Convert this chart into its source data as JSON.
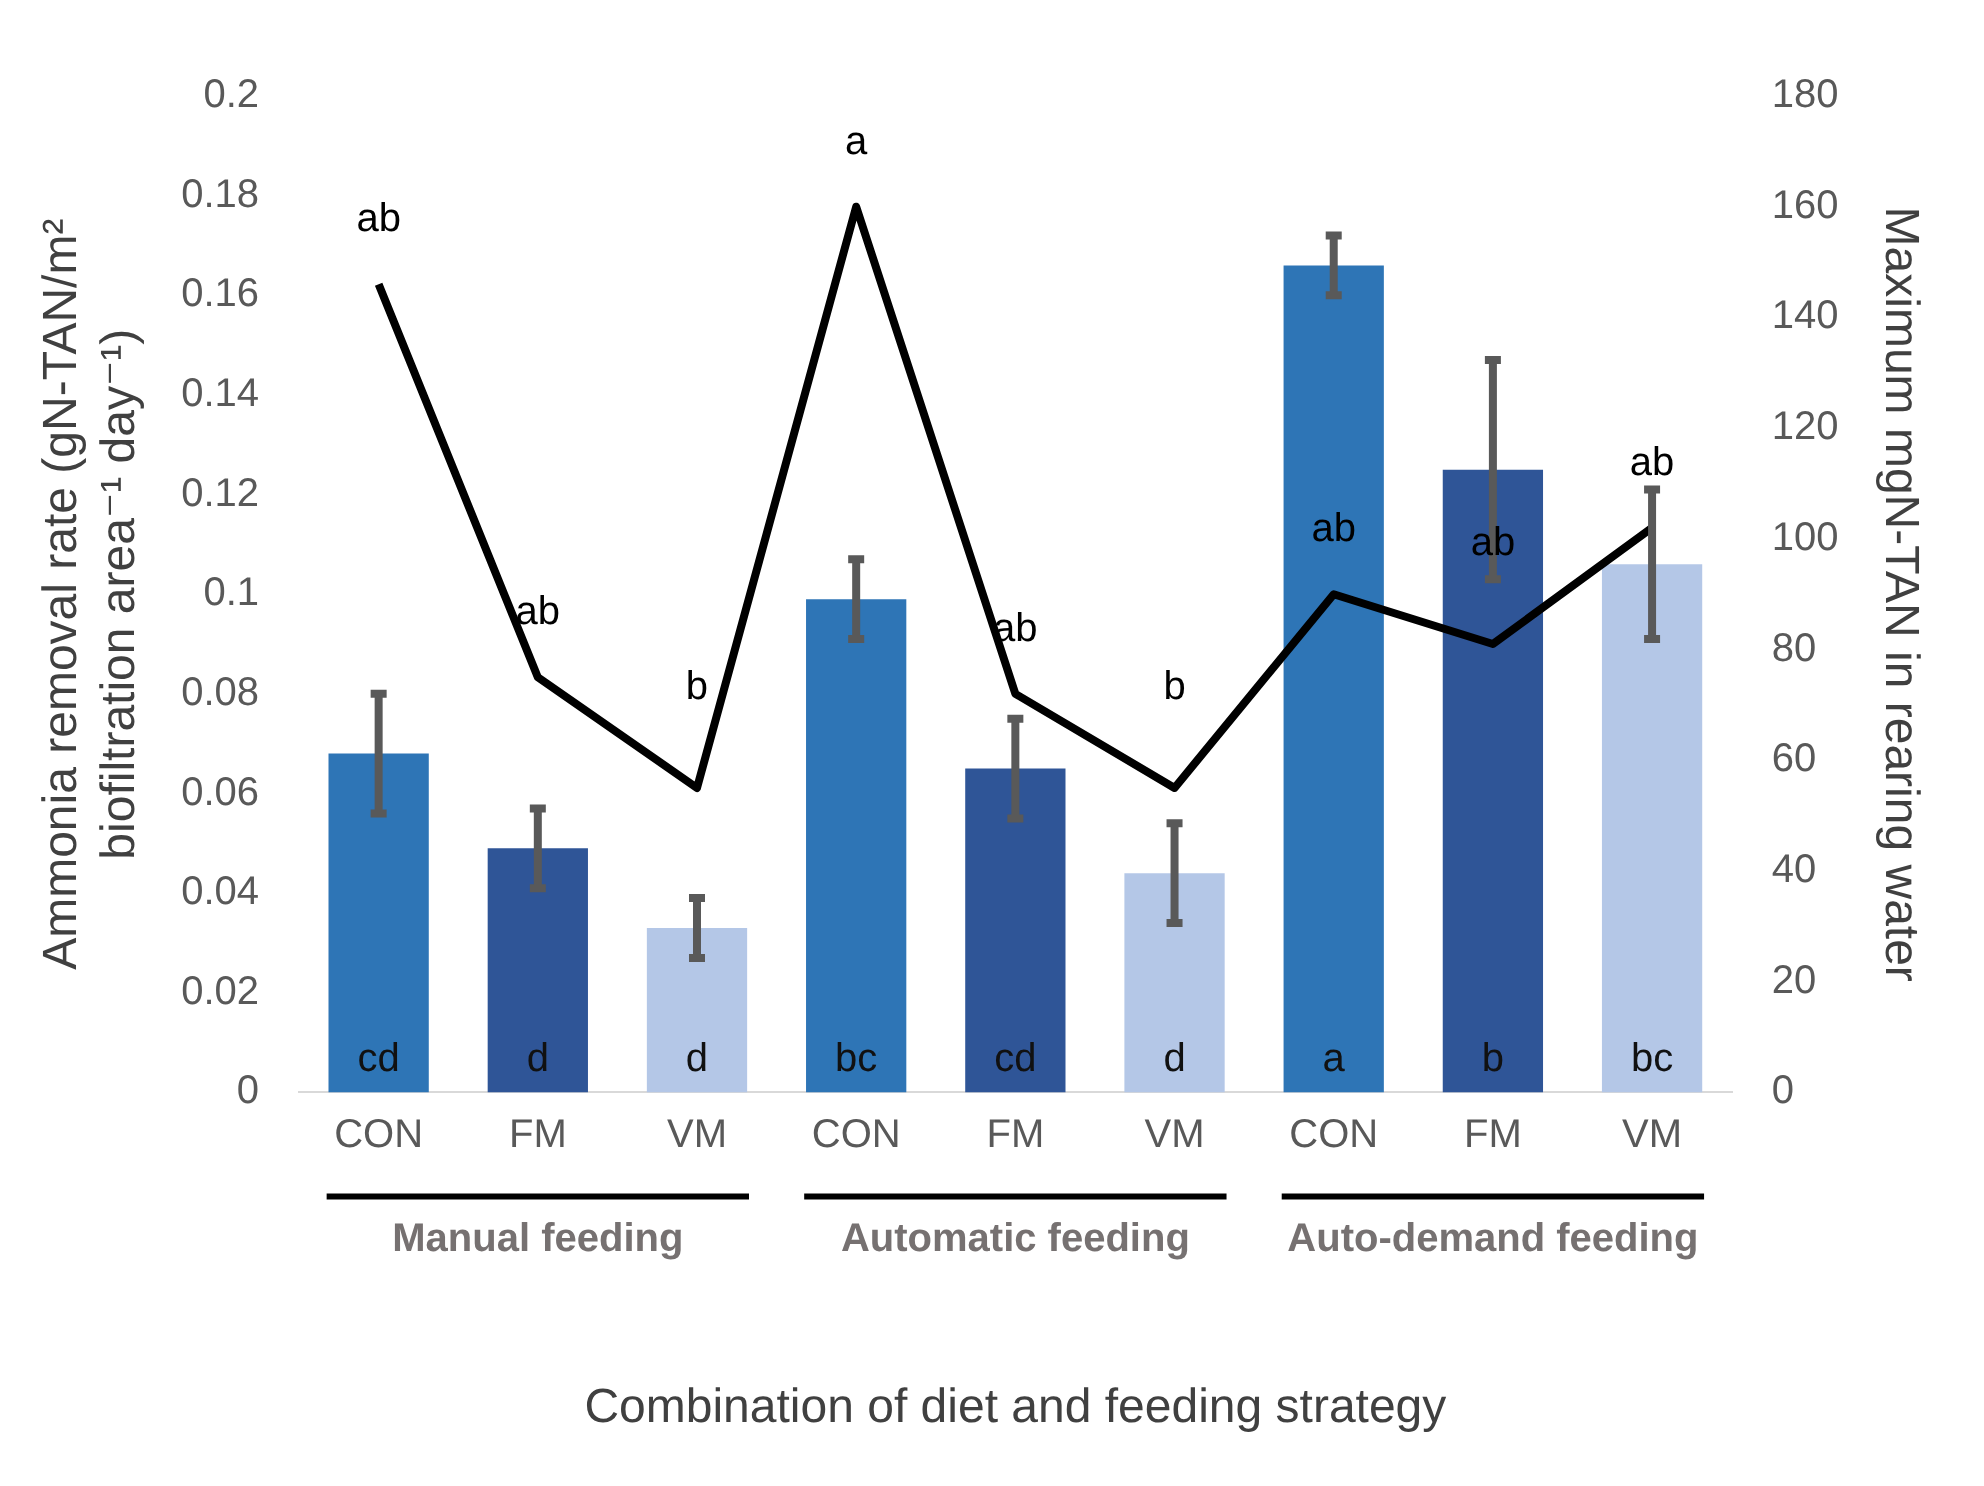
{
  "chart_data": {
    "type": "bar",
    "xlabel": "Combination of diet and feeding strategy",
    "ylabel": "Ammonia removal rate (gN-TAN/m² biofiltration area⁻¹ day⁻¹)",
    "y2label": "Maximum mgN-TAN in rearing water",
    "categories": [
      "CON",
      "FM",
      "VM",
      "CON",
      "FM",
      "VM",
      "CON",
      "FM",
      "VM"
    ],
    "series": [
      {
        "colors": [
          "#2e75b6",
          "#2f5597",
          "#b4c7e7",
          "#2e75b6",
          "#2f5597",
          "#b4c7e7",
          "#2e75b6",
          "#2f5597",
          "#b4c7e7"
        ],
        "values": [
          0.068,
          0.049,
          0.033,
          0.099,
          0.065,
          0.044,
          0.166,
          0.125,
          0.106
        ],
        "errors": [
          0.012,
          0.008,
          0.006,
          0.008,
          0.01,
          0.01,
          0.006,
          0.022,
          0.015
        ],
        "value_labels": [
          "cd",
          "d",
          "d",
          "bc",
          "cd",
          "d",
          "a",
          "b",
          "bc"
        ]
      },
      {
        "type": "line",
        "axis": "y2",
        "color": "#000000",
        "values": [
          146,
          75,
          55,
          160,
          72,
          55,
          90,
          81,
          102
        ],
        "value_labels": [
          "ab",
          "ab",
          "b",
          "a",
          "ab",
          "b",
          "ab",
          "ab",
          "ab"
        ]
      }
    ],
    "ylim": [
      0,
      0.2
    ],
    "yticks": [
      0,
      0.02,
      0.04,
      0.06,
      0.08,
      0.1,
      0.12,
      0.14,
      0.16,
      0.18,
      0.2
    ],
    "y2lim": [
      0,
      180
    ],
    "y2ticks": [
      0,
      20,
      40,
      60,
      80,
      100,
      120,
      140,
      160,
      180
    ],
    "annotations": [
      "Manual feeding",
      "Automatic feeding",
      "Auto-demand feeding"
    ],
    "grid": false,
    "legend": false,
    "marker": "none"
  }
}
